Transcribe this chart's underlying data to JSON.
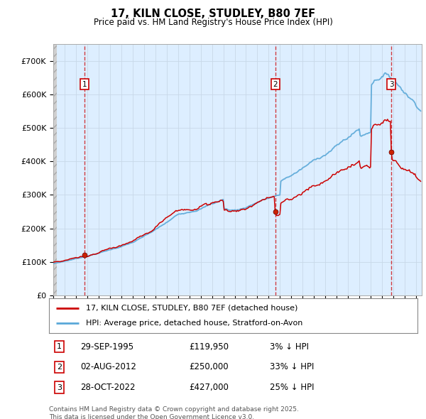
{
  "title_line1": "17, KILN CLOSE, STUDLEY, B80 7EF",
  "title_line2": "Price paid vs. HM Land Registry's House Price Index (HPI)",
  "ylim": [
    0,
    750000
  ],
  "yticks": [
    0,
    100000,
    200000,
    300000,
    400000,
    500000,
    600000,
    700000
  ],
  "ytick_labels": [
    "£0",
    "£100K",
    "£200K",
    "£300K",
    "£400K",
    "£500K",
    "£600K",
    "£700K"
  ],
  "xlim_start": 1993.0,
  "xlim_end": 2025.5,
  "sale_dates": [
    1995.75,
    2012.58,
    2022.83
  ],
  "sale_prices": [
    119950,
    250000,
    427000
  ],
  "sale_labels": [
    "1",
    "2",
    "3"
  ],
  "hpi_color": "#5aa8d8",
  "price_color": "#cc0000",
  "grid_color": "#c8d8e8",
  "bg_color": "#ddeeff",
  "hatch_color": "#c8c8c8",
  "legend_entries": [
    "17, KILN CLOSE, STUDLEY, B80 7EF (detached house)",
    "HPI: Average price, detached house, Stratford-on-Avon"
  ],
  "sale_info": [
    {
      "label": "1",
      "date": "29-SEP-1995",
      "price": "£119,950",
      "pct": "3% ↓ HPI"
    },
    {
      "label": "2",
      "date": "02-AUG-2012",
      "price": "£250,000",
      "pct": "33% ↓ HPI"
    },
    {
      "label": "3",
      "date": "28-OCT-2022",
      "price": "£427,000",
      "pct": "25% ↓ HPI"
    }
  ],
  "footer": "Contains HM Land Registry data © Crown copyright and database right 2025.\nThis data is licensed under the Open Government Licence v3.0."
}
